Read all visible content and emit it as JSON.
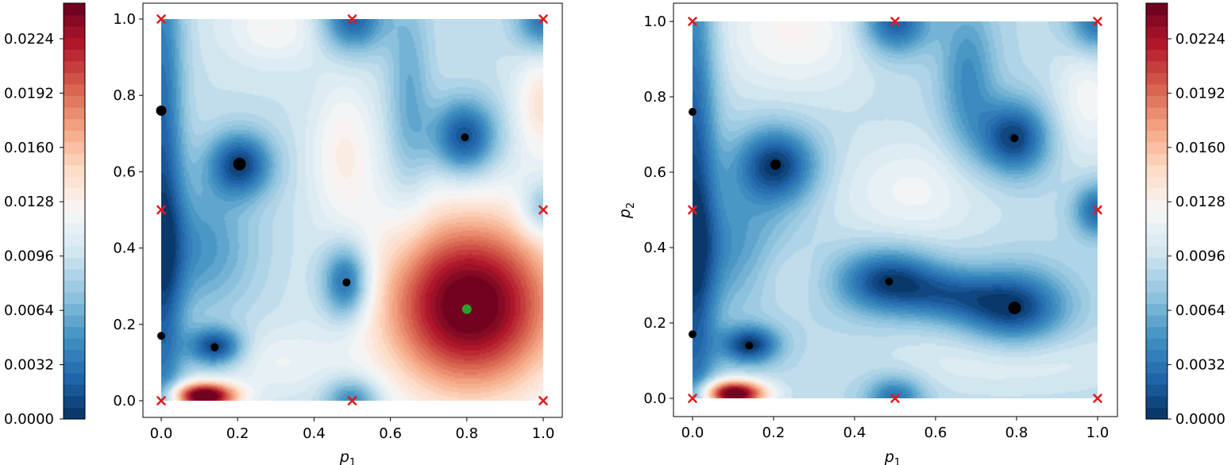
{
  "figure": {
    "panel_count": 2,
    "colors": {
      "cmap": [
        "#053061",
        "#2166ac",
        "#4393c3",
        "#92c5de",
        "#d1e5f0",
        "#f7f7f7",
        "#fddbc7",
        "#f4a582",
        "#d6604d",
        "#b2182b",
        "#67001f"
      ],
      "sample_marker": "#e41a1c",
      "point_marker": "#000000",
      "best_marker": "#2ca02c"
    }
  },
  "chart_data": [
    {
      "type": "contour",
      "panel": "left",
      "xlabel_base": "p",
      "xlabel_sub": "1",
      "ylabel_base": "",
      "ylabel_sub": "",
      "xlim": [
        0,
        1
      ],
      "ylim": [
        0,
        1
      ],
      "xticks": [
        "0.0",
        "0.2",
        "0.4",
        "0.6",
        "0.8",
        "1.0"
      ],
      "yticks": [
        "0.0",
        "0.2",
        "0.4",
        "0.6",
        "0.8",
        "1.0"
      ],
      "zlim": [
        0,
        0.0245
      ],
      "colorbar": {
        "position": "left",
        "ticks": [
          "0.0000",
          "0.0032",
          "0.0064",
          "0.0096",
          "0.0128",
          "0.0160",
          "0.0192",
          "0.0224"
        ]
      },
      "samples_x": [
        [
          0,
          0
        ],
        [
          0,
          0.5
        ],
        [
          0,
          1
        ],
        [
          0.5,
          0
        ],
        [
          0.5,
          1
        ],
        [
          1,
          0
        ],
        [
          1,
          0.5
        ],
        [
          1,
          1
        ]
      ],
      "points": [
        {
          "x": 0.0,
          "y": 0.76,
          "size": "medium"
        },
        {
          "x": 0.205,
          "y": 0.62,
          "size": "large"
        },
        {
          "x": 0.795,
          "y": 0.69,
          "size": "small"
        },
        {
          "x": 0.485,
          "y": 0.31,
          "size": "small"
        },
        {
          "x": 0.0,
          "y": 0.17,
          "size": "small"
        },
        {
          "x": 0.14,
          "y": 0.14,
          "size": "small"
        }
      ],
      "best_point": {
        "x": 0.8,
        "y": 0.24
      },
      "field": {
        "base": 0.0095,
        "bumps": [
          {
            "x": 0.81,
            "y": 0.25,
            "a": 0.0158,
            "sx": 0.17,
            "sy": 0.17
          },
          {
            "x": 0.11,
            "y": 0.01,
            "a": 0.017,
            "sx": 0.06,
            "sy": 0.025
          },
          {
            "x": 1.0,
            "y": 0.78,
            "a": 0.0045,
            "sx": 0.05,
            "sy": 0.1
          },
          {
            "x": 0.3,
            "y": 0.98,
            "a": 0.0028,
            "sx": 0.1,
            "sy": 0.07
          },
          {
            "x": 0.48,
            "y": 0.65,
            "a": 0.0035,
            "sx": 0.06,
            "sy": 0.13
          },
          {
            "x": 0.3,
            "y": 0.1,
            "a": 0.002,
            "sx": 0.1,
            "sy": 0.06
          },
          {
            "x": 0.0,
            "y": 0.5,
            "a": -0.0075,
            "sx": 0.04,
            "sy": 0.6
          },
          {
            "x": 0.205,
            "y": 0.62,
            "a": -0.0085,
            "sx": 0.06,
            "sy": 0.06
          },
          {
            "x": 0.795,
            "y": 0.69,
            "a": -0.0085,
            "sx": 0.06,
            "sy": 0.07
          },
          {
            "x": 0.485,
            "y": 0.31,
            "a": -0.0085,
            "sx": 0.045,
            "sy": 0.07
          },
          {
            "x": 0.14,
            "y": 0.14,
            "a": -0.0085,
            "sx": 0.05,
            "sy": 0.035
          },
          {
            "x": 0.5,
            "y": 1.0,
            "a": -0.0075,
            "sx": 0.06,
            "sy": 0.06
          },
          {
            "x": 0.5,
            "y": 0.0,
            "a": -0.006,
            "sx": 0.05,
            "sy": 0.04
          },
          {
            "x": 1.0,
            "y": 1.0,
            "a": -0.0065,
            "sx": 0.05,
            "sy": 0.06
          },
          {
            "x": 1.0,
            "y": 0.5,
            "a": -0.0045,
            "sx": 0.04,
            "sy": 0.05
          },
          {
            "x": 0.65,
            "y": 0.8,
            "a": -0.0035,
            "sx": 0.04,
            "sy": 0.2
          },
          {
            "x": 0.1,
            "y": 0.4,
            "a": -0.0045,
            "sx": 0.1,
            "sy": 0.12
          }
        ]
      }
    },
    {
      "type": "contour",
      "panel": "right",
      "xlabel_base": "p",
      "xlabel_sub": "1",
      "ylabel_base": "p",
      "ylabel_sub": "2",
      "xlim": [
        0,
        1
      ],
      "ylim": [
        0,
        1
      ],
      "xticks": [
        "0.0",
        "0.2",
        "0.4",
        "0.6",
        "0.8",
        "1.0"
      ],
      "yticks": [
        "0.0",
        "0.2",
        "0.4",
        "0.6",
        "0.8",
        "1.0"
      ],
      "zlim": [
        0,
        0.0245
      ],
      "colorbar": {
        "position": "right",
        "ticks": [
          "0.0000",
          "0.0032",
          "0.0064",
          "0.0096",
          "0.0128",
          "0.0160",
          "0.0192",
          "0.0224"
        ]
      },
      "samples_x": [
        [
          0,
          0
        ],
        [
          0,
          0.5
        ],
        [
          0,
          1
        ],
        [
          0.5,
          0
        ],
        [
          0.5,
          1
        ],
        [
          1,
          0
        ],
        [
          1,
          0.5
        ],
        [
          1,
          1
        ]
      ],
      "points": [
        {
          "x": 0.0,
          "y": 0.76,
          "size": "small"
        },
        {
          "x": 0.205,
          "y": 0.62,
          "size": "medium"
        },
        {
          "x": 0.795,
          "y": 0.69,
          "size": "small"
        },
        {
          "x": 0.485,
          "y": 0.31,
          "size": "small"
        },
        {
          "x": 0.0,
          "y": 0.17,
          "size": "small"
        },
        {
          "x": 0.14,
          "y": 0.14,
          "size": "small"
        },
        {
          "x": 0.795,
          "y": 0.24,
          "size": "large"
        }
      ],
      "best_point": null,
      "field": {
        "base": 0.009,
        "bumps": [
          {
            "x": 0.1,
            "y": 0.01,
            "a": 0.017,
            "sx": 0.055,
            "sy": 0.025
          },
          {
            "x": 0.25,
            "y": 0.98,
            "a": 0.0035,
            "sx": 0.14,
            "sy": 0.12
          },
          {
            "x": 0.55,
            "y": 0.55,
            "a": 0.0028,
            "sx": 0.14,
            "sy": 0.1
          },
          {
            "x": 0.78,
            "y": 0.1,
            "a": 0.002,
            "sx": 0.2,
            "sy": 0.06
          },
          {
            "x": 0.98,
            "y": 0.8,
            "a": 0.003,
            "sx": 0.06,
            "sy": 0.12
          },
          {
            "x": 0.22,
            "y": 0.33,
            "a": 0.0018,
            "sx": 0.07,
            "sy": 0.07
          },
          {
            "x": 0.0,
            "y": 0.5,
            "a": -0.0075,
            "sx": 0.04,
            "sy": 0.6
          },
          {
            "x": 0.205,
            "y": 0.62,
            "a": -0.0085,
            "sx": 0.07,
            "sy": 0.07
          },
          {
            "x": 0.795,
            "y": 0.69,
            "a": -0.0085,
            "sx": 0.06,
            "sy": 0.07
          },
          {
            "x": 0.485,
            "y": 0.31,
            "a": -0.0085,
            "sx": 0.09,
            "sy": 0.06
          },
          {
            "x": 0.795,
            "y": 0.24,
            "a": -0.0085,
            "sx": 0.09,
            "sy": 0.07
          },
          {
            "x": 0.64,
            "y": 0.27,
            "a": -0.0045,
            "sx": 0.08,
            "sy": 0.05
          },
          {
            "x": 0.14,
            "y": 0.14,
            "a": -0.0085,
            "sx": 0.05,
            "sy": 0.035
          },
          {
            "x": 0.5,
            "y": 1.0,
            "a": -0.0075,
            "sx": 0.06,
            "sy": 0.06
          },
          {
            "x": 0.5,
            "y": 0.0,
            "a": -0.006,
            "sx": 0.05,
            "sy": 0.04
          },
          {
            "x": 1.0,
            "y": 1.0,
            "a": -0.0065,
            "sx": 0.05,
            "sy": 0.06
          },
          {
            "x": 1.0,
            "y": 0.5,
            "a": -0.0065,
            "sx": 0.04,
            "sy": 0.05
          },
          {
            "x": 0.68,
            "y": 0.85,
            "a": -0.0045,
            "sx": 0.05,
            "sy": 0.15
          },
          {
            "x": 0.1,
            "y": 0.4,
            "a": -0.004,
            "sx": 0.1,
            "sy": 0.12
          }
        ]
      }
    }
  ]
}
